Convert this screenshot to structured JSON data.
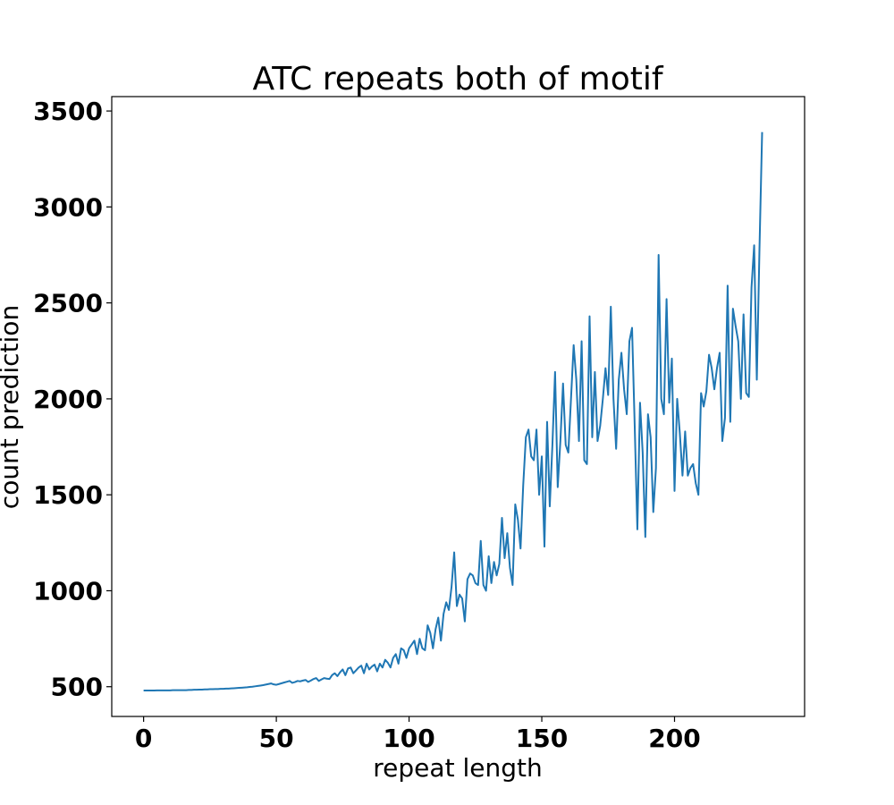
{
  "chart_data": {
    "type": "line",
    "title": "ATC repeats both of motif",
    "xlabel": "repeat length",
    "ylabel": "count prediction",
    "xlim": [
      -12,
      249
    ],
    "ylim": [
      345,
      3575
    ],
    "xticks": [
      0,
      50,
      100,
      150,
      200
    ],
    "xtick_labels": [
      "0",
      "50",
      "100",
      "150",
      "200"
    ],
    "yticks": [
      500,
      1000,
      1500,
      2000,
      2500,
      3000,
      3500
    ],
    "ytick_labels": [
      "500",
      "1000",
      "1500",
      "2000",
      "2500",
      "3000",
      "3500"
    ],
    "grid": false,
    "series": [
      {
        "color": "#1f77b4",
        "x_start": 0,
        "x_step": 1,
        "y": [
          480,
          480,
          480,
          480,
          480,
          481,
          481,
          481,
          481,
          481,
          481,
          482,
          482,
          482,
          482,
          482,
          482,
          483,
          483,
          484,
          484,
          485,
          485,
          486,
          486,
          487,
          487,
          488,
          488,
          489,
          489,
          490,
          490,
          491,
          492,
          493,
          494,
          495,
          496,
          497,
          499,
          500,
          502,
          504,
          506,
          508,
          511,
          514,
          517,
          512,
          510,
          514,
          518,
          522,
          526,
          530,
          520,
          524,
          530,
          528,
          532,
          535,
          525,
          532,
          540,
          545,
          530,
          538,
          545,
          542,
          540,
          560,
          570,
          555,
          575,
          590,
          560,
          595,
          600,
          570,
          585,
          600,
          610,
          570,
          620,
          590,
          605,
          615,
          580,
          620,
          600,
          640,
          625,
          600,
          650,
          670,
          620,
          700,
          690,
          650,
          700,
          720,
          740,
          670,
          750,
          700,
          690,
          820,
          780,
          700,
          800,
          860,
          740,
          880,
          940,
          900,
          1020,
          1200,
          920,
          980,
          960,
          840,
          1060,
          1090,
          1080,
          1040,
          1030,
          1260,
          1030,
          1000,
          1180,
          1040,
          1150,
          1080,
          1140,
          1380,
          1170,
          1300,
          1120,
          1030,
          1450,
          1370,
          1220,
          1550,
          1800,
          1840,
          1700,
          1680,
          1840,
          1500,
          1700,
          1230,
          1880,
          1440,
          1760,
          2140,
          1540,
          1780,
          2080,
          1760,
          1720,
          2000,
          2280,
          2100,
          1780,
          2300,
          1680,
          1660,
          2430,
          1800,
          2140,
          1780,
          1860,
          2000,
          2160,
          2020,
          2480,
          2000,
          1740,
          2100,
          2240,
          2050,
          1920,
          2300,
          2370,
          1860,
          1320,
          1980,
          1720,
          1280,
          1920,
          1800,
          1410,
          1640,
          2750,
          2000,
          1920,
          2520,
          1980,
          2210,
          1520,
          2000,
          1820,
          1600,
          1830,
          1600,
          1640,
          1660,
          1560,
          1500,
          2030,
          1960,
          2040,
          2230,
          2160,
          2050,
          2160,
          2240,
          1780,
          1900,
          2590,
          1880,
          2470,
          2380,
          2300,
          2000,
          2440,
          2030,
          2010,
          2580,
          2800,
          2100,
          2780,
          3390
        ]
      }
    ]
  }
}
